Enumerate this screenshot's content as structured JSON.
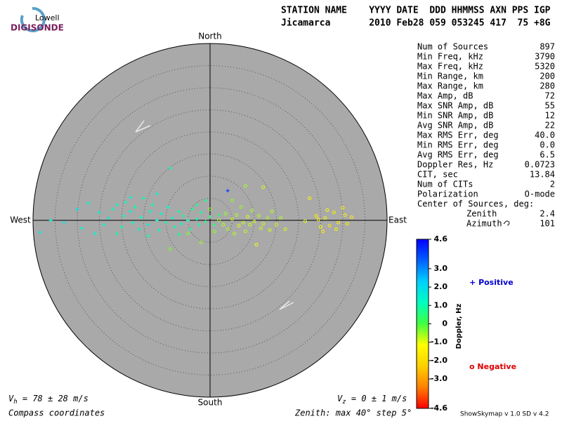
{
  "logo": {
    "top": "Lowell",
    "bottom": "DIGISONDE"
  },
  "header": {
    "line1": "STATION NAME    YYYY DATE  DDD HHMMSS AXN PPS IGP",
    "line2": "Jicamarca       2010 Feb28 059 053245 417  75 +8G"
  },
  "stats": [
    {
      "label": "Num of Sources",
      "value": "897"
    },
    {
      "label": "Min Freq, kHz",
      "value": "3790"
    },
    {
      "label": "Max Freq, kHz",
      "value": "5320"
    },
    {
      "label": "Min Range, km",
      "value": "200"
    },
    {
      "label": "Max Range, km",
      "value": "280"
    },
    {
      "label": "Max Amp, dB",
      "value": "72"
    },
    {
      "label": "Max SNR Amp, dB",
      "value": "55"
    },
    {
      "label": "Min SNR Amp, dB",
      "value": "12"
    },
    {
      "label": "Avg SNR Amp, dB",
      "value": "22"
    },
    {
      "label": "Max RMS Err, deg",
      "value": "40.0"
    },
    {
      "label": "Min RMS Err, deg",
      "value": "0.0"
    },
    {
      "label": "Avg RMS Err, deg",
      "value": "6.5"
    },
    {
      "label": "Doppler Res, Hz",
      "value": "0.0723"
    },
    {
      "label": "CIT, sec",
      "value": "13.84"
    },
    {
      "label": "Num of CITs",
      "value": "2"
    },
    {
      "label": "Polarization",
      "value": "O-mode"
    }
  ],
  "center": {
    "label": "Center of Sources, deg:",
    "zenith": {
      "label": "Zenith",
      "value": "2.4"
    },
    "azimuth": {
      "label": "Azimuth",
      "value": "101"
    }
  },
  "chart_data": {
    "type": "skymap",
    "compass": {
      "north": "North",
      "south": "South",
      "west": "West",
      "east": "East"
    },
    "zenith_max": 40,
    "zenith_step": 5,
    "doppler_lim": [
      -4.6,
      4.6
    ],
    "doppler_ticks": [
      4.6,
      {
        "value": 3,
        "label": "3.0"
      },
      {
        "value": 2,
        "label": "2.0"
      },
      {
        "value": 1,
        "label": "1.0"
      },
      0,
      {
        "value": -1,
        "label": "-1.0"
      },
      {
        "value": -2,
        "label": "-2.0"
      },
      {
        "value": -3,
        "label": "-3.0"
      },
      -4.6
    ],
    "doppler_label": "Doppler, Hz",
    "colormap": [
      "#ff0000",
      "#ff8000",
      "#ffd000",
      "#ffff00",
      "#40ff40",
      "#00ffc0",
      "#00d0ff",
      "#0060ff",
      "#0000ff"
    ],
    "legend": {
      "positive": {
        "symbol": "+",
        "text": "Positive",
        "color": "#0000cc"
      },
      "negative": {
        "symbol": "o",
        "text": "Negative",
        "color": "#dd0000"
      }
    },
    "points": [
      [
        -38.5,
        -2.7,
        1.6
      ],
      [
        -36,
        0,
        1.5
      ],
      [
        -30,
        2.5,
        1.8
      ],
      [
        -27.5,
        3.9,
        1.3
      ],
      [
        -25,
        1.8,
        1.4
      ],
      [
        -24,
        -1,
        1.2
      ],
      [
        -23,
        0.5,
        1.6
      ],
      [
        -22,
        2.5,
        1.1
      ],
      [
        -21,
        3.5,
        1.3
      ],
      [
        -20,
        -1.5,
        1.0
      ],
      [
        -19.5,
        1,
        1.4
      ],
      [
        -19,
        4.1,
        1.2
      ],
      [
        -18,
        2,
        1.5
      ],
      [
        -17.5,
        -0.5,
        1.3
      ],
      [
        -17,
        3,
        1.1
      ],
      [
        -16,
        -2,
        1.4
      ],
      [
        -15.5,
        0.7,
        1.2
      ],
      [
        -15,
        5,
        1.0
      ],
      [
        -14,
        -1,
        1.5
      ],
      [
        -13.5,
        2,
        1.3
      ],
      [
        -13,
        3.5,
        1.1
      ],
      [
        -12,
        0,
        1.4
      ],
      [
        -11.5,
        -2.2,
        1.2
      ],
      [
        -11,
        1.5,
        1.3
      ],
      [
        -10,
        -0.5,
        1.0
      ],
      [
        -9.5,
        3,
        1.2
      ],
      [
        -9,
        11.8,
        1.3
      ],
      [
        -8.5,
        0.5,
        1.4
      ],
      [
        -8,
        -1.5,
        1.1
      ],
      [
        -7,
        2,
        0.9
      ],
      [
        -6.5,
        -0.8,
        1.2
      ],
      [
        -6,
        1,
        0.8
      ],
      [
        -5,
        0,
        1.1
      ],
      [
        -4.5,
        -2,
        0.9
      ],
      [
        -4,
        2.5,
        0.7
      ],
      [
        -3,
        0.3,
        1.0
      ],
      [
        -2.5,
        -1,
        0.8
      ],
      [
        -2,
        1.8,
        0.9
      ],
      [
        -1,
        -0.3,
        0.6
      ],
      [
        0,
        0.8,
        0.5
      ],
      [
        1,
        -1,
        0.6
      ],
      [
        2,
        1.2,
        0.4
      ],
      [
        -26,
        -3,
        1.3
      ],
      [
        -33,
        -0.5,
        1.7
      ],
      [
        -29,
        -1.8,
        1.2
      ],
      [
        -21,
        -3,
        1.0
      ],
      [
        -14,
        -3.5,
        1.1
      ],
      [
        -7,
        -3.2,
        0.9
      ],
      [
        -18,
        5.2,
        1.4
      ],
      [
        -12,
        6,
        1.2
      ],
      [
        -3,
        3.5,
        0.8
      ],
      [
        -1,
        4.5,
        0.7
      ],
      [
        4,
        6.7,
        4.0
      ],
      [
        -9,
        -6.5,
        -0.3
      ],
      [
        -5,
        -3,
        -0.4
      ],
      [
        -2,
        -5,
        -0.5
      ],
      [
        0,
        2.5,
        -0.4
      ],
      [
        1,
        -2.5,
        -0.5
      ],
      [
        2,
        0,
        -0.6
      ],
      [
        3,
        -1,
        -0.7
      ],
      [
        3.5,
        1.5,
        -0.5
      ],
      [
        4,
        -2,
        -0.6
      ],
      [
        5,
        0.3,
        -0.8
      ],
      [
        5.5,
        -3,
        -0.7
      ],
      [
        6,
        1.2,
        -0.6
      ],
      [
        6.5,
        -1.2,
        -0.9
      ],
      [
        7,
        3,
        -0.5
      ],
      [
        7.5,
        -0.5,
        -0.8
      ],
      [
        8,
        -2.5,
        -0.7
      ],
      [
        8.5,
        0.8,
        -0.9
      ],
      [
        9,
        -1,
        -0.8
      ],
      [
        9.5,
        2.2,
        -0.6
      ],
      [
        10,
        -0.3,
        -0.9
      ],
      [
        10.5,
        -5.5,
        -1.1
      ],
      [
        11,
        1,
        -0.7
      ],
      [
        11.5,
        -1.8,
        -0.8
      ],
      [
        12,
        7.5,
        -0.9
      ],
      [
        12,
        -0.8,
        -0.8
      ],
      [
        13,
        0.5,
        -0.6
      ],
      [
        13.5,
        -2.2,
        -0.9
      ],
      [
        14,
        2,
        -0.7
      ],
      [
        15,
        -1,
        -0.8
      ],
      [
        16,
        0.5,
        -0.7
      ],
      [
        17,
        -2,
        -0.9
      ],
      [
        8,
        7.8,
        -0.6
      ],
      [
        5,
        4.5,
        -0.5
      ],
      [
        21.5,
        -0.2,
        -1.0
      ],
      [
        22.5,
        5,
        -1.3
      ],
      [
        24,
        1,
        -1.4
      ],
      [
        25,
        -1.5,
        -1.2
      ],
      [
        25.5,
        -2.5,
        -1.5
      ],
      [
        26,
        0.5,
        -1.3
      ],
      [
        27,
        -1.2,
        -1.6
      ],
      [
        28,
        1.8,
        -1.4
      ],
      [
        29,
        -0.5,
        -1.5
      ],
      [
        30,
        2.8,
        -1.3
      ],
      [
        31,
        -0.8,
        -1.4
      ],
      [
        32,
        0.7,
        -1.5
      ],
      [
        28.5,
        -2,
        -1.3
      ],
      [
        26.5,
        2.3,
        -1.2
      ],
      [
        30.5,
        1.2,
        -1.5
      ],
      [
        24.5,
        0.2,
        -1.4
      ]
    ]
  },
  "footer": {
    "vh": {
      "symbol": "V",
      "sub": "h",
      "text": " = 78 ± 28 m/s"
    },
    "vz": {
      "symbol": "V",
      "sub": "z",
      "text": " = 0 ± 1 m/s"
    },
    "coords": "Compass coordinates",
    "zenith": "Zenith: max 40°  step 5°",
    "version": "ShowSkymap v 1.0  SD v 4.2"
  }
}
